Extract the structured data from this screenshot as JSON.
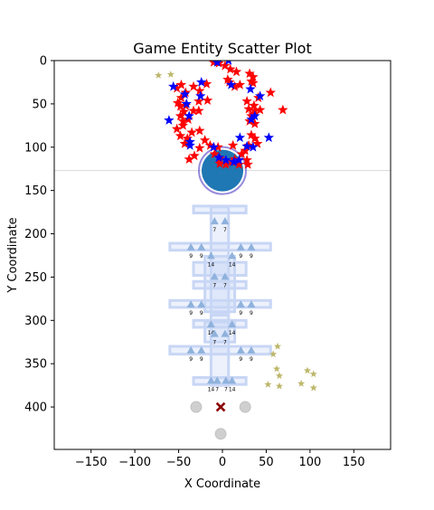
{
  "chart_data": {
    "type": "scatter",
    "title": "Game Entity Scatter Plot",
    "xlabel": "X Coordinate",
    "ylabel": "Y Coordinate",
    "xlim": [
      -192,
      192
    ],
    "ylim": [
      449,
      0
    ],
    "y_inverted": true,
    "grid": false,
    "x_ticks": [
      -150,
      -100,
      -50,
      0,
      50,
      100,
      150
    ],
    "y_ticks": [
      0,
      50,
      100,
      150,
      200,
      250,
      300,
      350,
      400
    ],
    "colors": {
      "red_star": "#ff0000",
      "blue_star": "#0000ff",
      "khaki_star": "#bdb76b",
      "player": "#1f77b4",
      "player_ring": "#6a5acd",
      "structure": "#c8d6f5",
      "triangle": "#8fb2dc",
      "gray_circle": "#cfcfcf",
      "cross": "#8b0000",
      "hline": "#d9d9d9"
    },
    "hline_y": 127,
    "player": {
      "x": 0,
      "y": 127
    },
    "red_stars": [
      [
        -47,
        28
      ],
      [
        -52,
        32
      ],
      [
        -42,
        37
      ],
      [
        -33,
        30
      ],
      [
        -26,
        35
      ],
      [
        -18,
        27
      ],
      [
        -10,
        2
      ],
      [
        -4,
        3
      ],
      [
        3,
        6
      ],
      [
        9,
        10
      ],
      [
        16,
        13
      ],
      [
        31,
        15
      ],
      [
        35,
        19
      ],
      [
        33,
        24
      ],
      [
        6,
        22
      ],
      [
        8,
        25
      ],
      [
        14,
        30
      ],
      [
        20,
        28
      ],
      [
        35,
        26
      ],
      [
        55,
        37
      ],
      [
        41,
        43
      ],
      [
        36,
        52
      ],
      [
        28,
        47
      ],
      [
        30,
        56
      ],
      [
        35,
        62
      ],
      [
        37,
        58
      ],
      [
        43,
        57
      ],
      [
        69,
        57
      ],
      [
        33,
        64
      ],
      [
        31,
        70
      ],
      [
        37,
        73
      ],
      [
        33,
        86
      ],
      [
        37,
        90
      ],
      [
        40,
        96
      ],
      [
        30,
        98
      ],
      [
        26,
        104
      ],
      [
        28,
        115
      ],
      [
        29,
        120
      ],
      [
        19,
        120
      ],
      [
        14,
        114
      ],
      [
        22,
        108
      ],
      [
        12,
        98
      ],
      [
        -5,
        100
      ],
      [
        -14,
        98
      ],
      [
        -20,
        92
      ],
      [
        -26,
        101
      ],
      [
        -32,
        110
      ],
      [
        -38,
        114
      ],
      [
        -43,
        96
      ],
      [
        -48,
        87
      ],
      [
        -40,
        90
      ],
      [
        -35,
        83
      ],
      [
        -45,
        75
      ],
      [
        -52,
        79
      ],
      [
        -39,
        68
      ],
      [
        -45,
        70
      ],
      [
        -48,
        64
      ],
      [
        -44,
        59
      ],
      [
        -48,
        53
      ],
      [
        -51,
        49
      ],
      [
        -42,
        52
      ],
      [
        -27,
        58
      ],
      [
        -17,
        46
      ],
      [
        -27,
        47
      ],
      [
        -9,
        108
      ],
      [
        -3,
        113
      ],
      [
        -3,
        119
      ],
      [
        4,
        120
      ],
      [
        11,
        117
      ],
      [
        -26,
        81
      ],
      [
        -33,
        58
      ],
      [
        -47,
        43
      ]
    ],
    "blue_stars": [
      [
        -56,
        30
      ],
      [
        -43,
        39
      ],
      [
        -25,
        41
      ],
      [
        -24,
        25
      ],
      [
        -6,
        2
      ],
      [
        7,
        0
      ],
      [
        10,
        28
      ],
      [
        32,
        33
      ],
      [
        43,
        41
      ],
      [
        37,
        64
      ],
      [
        33,
        68
      ],
      [
        53,
        89
      ],
      [
        35,
        100
      ],
      [
        28,
        99
      ],
      [
        20,
        89
      ],
      [
        19,
        115
      ],
      [
        13,
        117
      ],
      [
        4,
        115
      ],
      [
        -4,
        112
      ],
      [
        -10,
        100
      ],
      [
        -37,
        98
      ],
      [
        -37,
        94
      ],
      [
        -38,
        64
      ],
      [
        -61,
        69
      ],
      [
        -41,
        50
      ]
    ],
    "khaki_stars": [
      [
        -73,
        17
      ],
      [
        -59,
        16
      ],
      [
        63,
        330
      ],
      [
        58,
        339
      ],
      [
        62,
        356
      ],
      [
        65,
        364
      ],
      [
        52,
        374
      ],
      [
        65,
        376
      ],
      [
        90,
        373
      ],
      [
        97,
        358
      ],
      [
        104,
        362
      ],
      [
        104,
        378
      ]
    ],
    "structures": [
      {
        "x0": -33,
        "x1": 27,
        "y0": 233,
        "y1": 248
      },
      {
        "x0": -20,
        "x1": 14,
        "y0": 226,
        "y1": 290
      },
      {
        "x0": -60,
        "x1": 55,
        "y0": 211,
        "y1": 219
      },
      {
        "x0": -33,
        "x1": 27,
        "y0": 168,
        "y1": 176
      },
      {
        "x0": -13,
        "x1": 7,
        "y0": 169,
        "y1": 291
      },
      {
        "x0": -33,
        "x1": 27,
        "y0": 255,
        "y1": 263
      },
      {
        "x0": -60,
        "x1": 55,
        "y0": 277,
        "y1": 285
      },
      {
        "x0": -33,
        "x1": 27,
        "y0": 300,
        "y1": 308
      },
      {
        "x0": -13,
        "x1": 7,
        "y0": 294,
        "y1": 375
      },
      {
        "x0": -60,
        "x1": 55,
        "y0": 330,
        "y1": 339
      },
      {
        "x0": -33,
        "x1": 27,
        "y0": 366,
        "y1": 374
      },
      {
        "x0": -20,
        "x1": 14,
        "y0": 302,
        "y1": 325
      }
    ],
    "triangles": [
      {
        "x": -9,
        "y": 186,
        "label": "7"
      },
      {
        "x": 3,
        "y": 186,
        "label": "7"
      },
      {
        "x": -36,
        "y": 216,
        "label": "9"
      },
      {
        "x": -24,
        "y": 216,
        "label": "9"
      },
      {
        "x": 21,
        "y": 216,
        "label": "9"
      },
      {
        "x": 33,
        "y": 216,
        "label": "9"
      },
      {
        "x": -13,
        "y": 226,
        "label": "14"
      },
      {
        "x": 11,
        "y": 226,
        "label": "14"
      },
      {
        "x": -9,
        "y": 250,
        "label": "7"
      },
      {
        "x": 3,
        "y": 250,
        "label": "7"
      },
      {
        "x": -36,
        "y": 282,
        "label": "9"
      },
      {
        "x": -24,
        "y": 282,
        "label": "9"
      },
      {
        "x": 21,
        "y": 282,
        "label": "9"
      },
      {
        "x": 33,
        "y": 282,
        "label": "9"
      },
      {
        "x": -13,
        "y": 305,
        "label": "14"
      },
      {
        "x": 11,
        "y": 305,
        "label": "14"
      },
      {
        "x": -9,
        "y": 316,
        "label": "7"
      },
      {
        "x": 3,
        "y": 316,
        "label": "7"
      },
      {
        "x": -36,
        "y": 335,
        "label": "9"
      },
      {
        "x": -24,
        "y": 335,
        "label": "9"
      },
      {
        "x": 21,
        "y": 335,
        "label": "9"
      },
      {
        "x": 33,
        "y": 335,
        "label": "9"
      },
      {
        "x": -13,
        "y": 370,
        "label": "14"
      },
      {
        "x": -6,
        "y": 370,
        "label": "7"
      },
      {
        "x": 4,
        "y": 370,
        "label": "7"
      },
      {
        "x": 11,
        "y": 370,
        "label": "14"
      }
    ],
    "gray_circles": [
      [
        -30,
        400
      ],
      [
        26,
        400
      ],
      [
        -2,
        431
      ]
    ],
    "cross": {
      "x": -2,
      "y": 400
    }
  }
}
